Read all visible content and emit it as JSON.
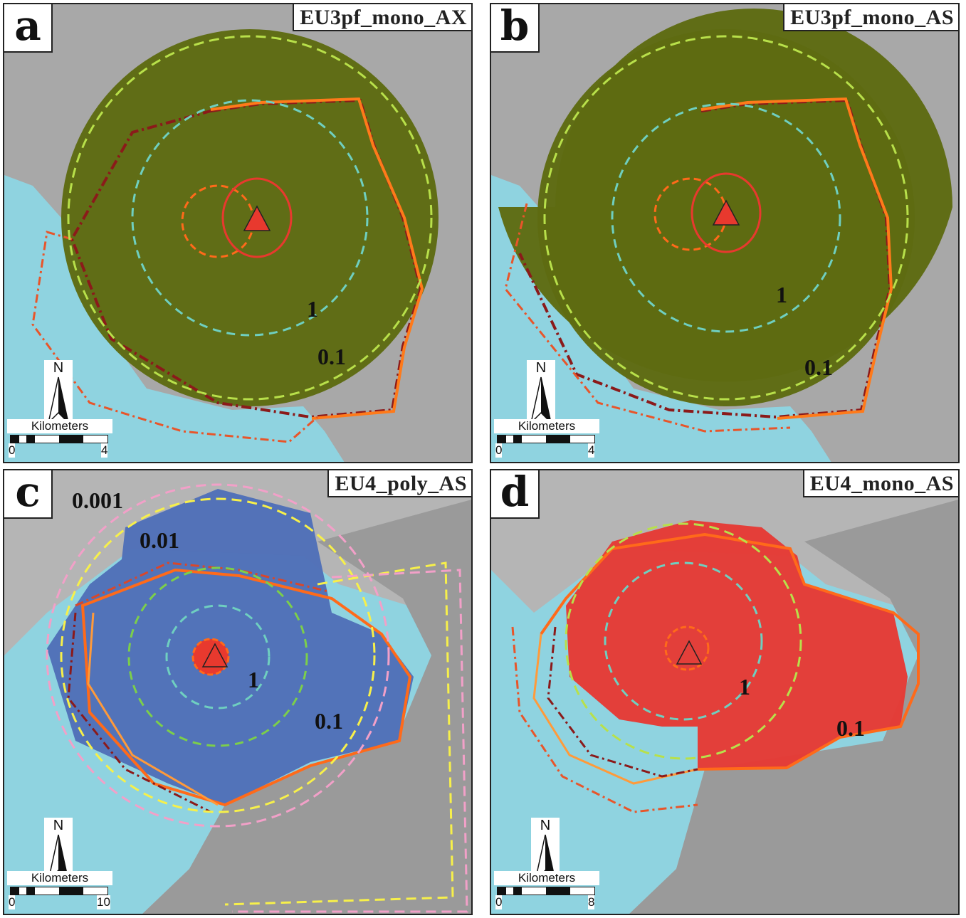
{
  "panels": [
    {
      "letter": "a",
      "title": "EU3pf_mono_AX",
      "contour_labels": [
        "1",
        "0.1"
      ],
      "scale": {
        "unit": "Kilometers",
        "min": "0",
        "max": "4"
      },
      "north": "N"
    },
    {
      "letter": "b",
      "title": "EU3pf_mono_AS",
      "contour_labels": [
        "1",
        "0.1"
      ],
      "scale": {
        "unit": "Kilometers",
        "min": "0",
        "max": "4"
      },
      "north": "N"
    },
    {
      "letter": "c",
      "title": "EU4_poly_AS",
      "contour_labels": [
        "0.001",
        "0.01",
        "1",
        "0.1"
      ],
      "scale": {
        "unit": "Kilometers",
        "min": "0",
        "max": "10"
      },
      "north": "N"
    },
    {
      "letter": "d",
      "title": "EU4_mono_AS",
      "contour_labels": [
        "1",
        "0.1"
      ],
      "scale": {
        "unit": "Kilometers",
        "min": "0",
        "max": "8"
      },
      "north": "N"
    }
  ],
  "colors": {
    "sea": "#8fd3e0",
    "land": "#a9a9a9",
    "hazard_a_b": "#5e6b12",
    "hazard_c": "#4f6fb8",
    "hazard_d": "#e53a35",
    "vent": "#e8392e"
  },
  "icons": {
    "vent": "triangle-icon",
    "north": "north-arrow-icon"
  }
}
